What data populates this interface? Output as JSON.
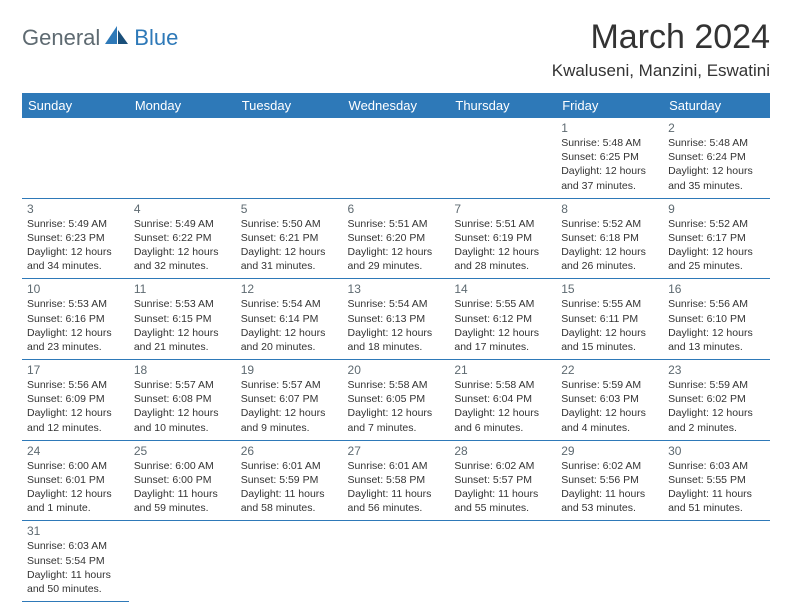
{
  "brand": {
    "part1": "General",
    "part2": "Blue"
  },
  "title": "March 2024",
  "location": "Kwaluseni, Manzini, Eswatini",
  "colors": {
    "header_bg": "#2e79b8",
    "border": "#2e79b8",
    "brand_gray": "#5e6a71",
    "brand_blue": "#2e79b8"
  },
  "day_headers": [
    "Sunday",
    "Monday",
    "Tuesday",
    "Wednesday",
    "Thursday",
    "Friday",
    "Saturday"
  ],
  "weeks": [
    [
      null,
      null,
      null,
      null,
      null,
      {
        "n": "1",
        "sr": "Sunrise: 5:48 AM",
        "ss": "Sunset: 6:25 PM",
        "d1": "Daylight: 12 hours",
        "d2": "and 37 minutes."
      },
      {
        "n": "2",
        "sr": "Sunrise: 5:48 AM",
        "ss": "Sunset: 6:24 PM",
        "d1": "Daylight: 12 hours",
        "d2": "and 35 minutes."
      }
    ],
    [
      {
        "n": "3",
        "sr": "Sunrise: 5:49 AM",
        "ss": "Sunset: 6:23 PM",
        "d1": "Daylight: 12 hours",
        "d2": "and 34 minutes."
      },
      {
        "n": "4",
        "sr": "Sunrise: 5:49 AM",
        "ss": "Sunset: 6:22 PM",
        "d1": "Daylight: 12 hours",
        "d2": "and 32 minutes."
      },
      {
        "n": "5",
        "sr": "Sunrise: 5:50 AM",
        "ss": "Sunset: 6:21 PM",
        "d1": "Daylight: 12 hours",
        "d2": "and 31 minutes."
      },
      {
        "n": "6",
        "sr": "Sunrise: 5:51 AM",
        "ss": "Sunset: 6:20 PM",
        "d1": "Daylight: 12 hours",
        "d2": "and 29 minutes."
      },
      {
        "n": "7",
        "sr": "Sunrise: 5:51 AM",
        "ss": "Sunset: 6:19 PM",
        "d1": "Daylight: 12 hours",
        "d2": "and 28 minutes."
      },
      {
        "n": "8",
        "sr": "Sunrise: 5:52 AM",
        "ss": "Sunset: 6:18 PM",
        "d1": "Daylight: 12 hours",
        "d2": "and 26 minutes."
      },
      {
        "n": "9",
        "sr": "Sunrise: 5:52 AM",
        "ss": "Sunset: 6:17 PM",
        "d1": "Daylight: 12 hours",
        "d2": "and 25 minutes."
      }
    ],
    [
      {
        "n": "10",
        "sr": "Sunrise: 5:53 AM",
        "ss": "Sunset: 6:16 PM",
        "d1": "Daylight: 12 hours",
        "d2": "and 23 minutes."
      },
      {
        "n": "11",
        "sr": "Sunrise: 5:53 AM",
        "ss": "Sunset: 6:15 PM",
        "d1": "Daylight: 12 hours",
        "d2": "and 21 minutes."
      },
      {
        "n": "12",
        "sr": "Sunrise: 5:54 AM",
        "ss": "Sunset: 6:14 PM",
        "d1": "Daylight: 12 hours",
        "d2": "and 20 minutes."
      },
      {
        "n": "13",
        "sr": "Sunrise: 5:54 AM",
        "ss": "Sunset: 6:13 PM",
        "d1": "Daylight: 12 hours",
        "d2": "and 18 minutes."
      },
      {
        "n": "14",
        "sr": "Sunrise: 5:55 AM",
        "ss": "Sunset: 6:12 PM",
        "d1": "Daylight: 12 hours",
        "d2": "and 17 minutes."
      },
      {
        "n": "15",
        "sr": "Sunrise: 5:55 AM",
        "ss": "Sunset: 6:11 PM",
        "d1": "Daylight: 12 hours",
        "d2": "and 15 minutes."
      },
      {
        "n": "16",
        "sr": "Sunrise: 5:56 AM",
        "ss": "Sunset: 6:10 PM",
        "d1": "Daylight: 12 hours",
        "d2": "and 13 minutes."
      }
    ],
    [
      {
        "n": "17",
        "sr": "Sunrise: 5:56 AM",
        "ss": "Sunset: 6:09 PM",
        "d1": "Daylight: 12 hours",
        "d2": "and 12 minutes."
      },
      {
        "n": "18",
        "sr": "Sunrise: 5:57 AM",
        "ss": "Sunset: 6:08 PM",
        "d1": "Daylight: 12 hours",
        "d2": "and 10 minutes."
      },
      {
        "n": "19",
        "sr": "Sunrise: 5:57 AM",
        "ss": "Sunset: 6:07 PM",
        "d1": "Daylight: 12 hours",
        "d2": "and 9 minutes."
      },
      {
        "n": "20",
        "sr": "Sunrise: 5:58 AM",
        "ss": "Sunset: 6:05 PM",
        "d1": "Daylight: 12 hours",
        "d2": "and 7 minutes."
      },
      {
        "n": "21",
        "sr": "Sunrise: 5:58 AM",
        "ss": "Sunset: 6:04 PM",
        "d1": "Daylight: 12 hours",
        "d2": "and 6 minutes."
      },
      {
        "n": "22",
        "sr": "Sunrise: 5:59 AM",
        "ss": "Sunset: 6:03 PM",
        "d1": "Daylight: 12 hours",
        "d2": "and 4 minutes."
      },
      {
        "n": "23",
        "sr": "Sunrise: 5:59 AM",
        "ss": "Sunset: 6:02 PM",
        "d1": "Daylight: 12 hours",
        "d2": "and 2 minutes."
      }
    ],
    [
      {
        "n": "24",
        "sr": "Sunrise: 6:00 AM",
        "ss": "Sunset: 6:01 PM",
        "d1": "Daylight: 12 hours",
        "d2": "and 1 minute."
      },
      {
        "n": "25",
        "sr": "Sunrise: 6:00 AM",
        "ss": "Sunset: 6:00 PM",
        "d1": "Daylight: 11 hours",
        "d2": "and 59 minutes."
      },
      {
        "n": "26",
        "sr": "Sunrise: 6:01 AM",
        "ss": "Sunset: 5:59 PM",
        "d1": "Daylight: 11 hours",
        "d2": "and 58 minutes."
      },
      {
        "n": "27",
        "sr": "Sunrise: 6:01 AM",
        "ss": "Sunset: 5:58 PM",
        "d1": "Daylight: 11 hours",
        "d2": "and 56 minutes."
      },
      {
        "n": "28",
        "sr": "Sunrise: 6:02 AM",
        "ss": "Sunset: 5:57 PM",
        "d1": "Daylight: 11 hours",
        "d2": "and 55 minutes."
      },
      {
        "n": "29",
        "sr": "Sunrise: 6:02 AM",
        "ss": "Sunset: 5:56 PM",
        "d1": "Daylight: 11 hours",
        "d2": "and 53 minutes."
      },
      {
        "n": "30",
        "sr": "Sunrise: 6:03 AM",
        "ss": "Sunset: 5:55 PM",
        "d1": "Daylight: 11 hours",
        "d2": "and 51 minutes."
      }
    ],
    [
      {
        "n": "31",
        "sr": "Sunrise: 6:03 AM",
        "ss": "Sunset: 5:54 PM",
        "d1": "Daylight: 11 hours",
        "d2": "and 50 minutes."
      },
      null,
      null,
      null,
      null,
      null,
      null
    ]
  ]
}
